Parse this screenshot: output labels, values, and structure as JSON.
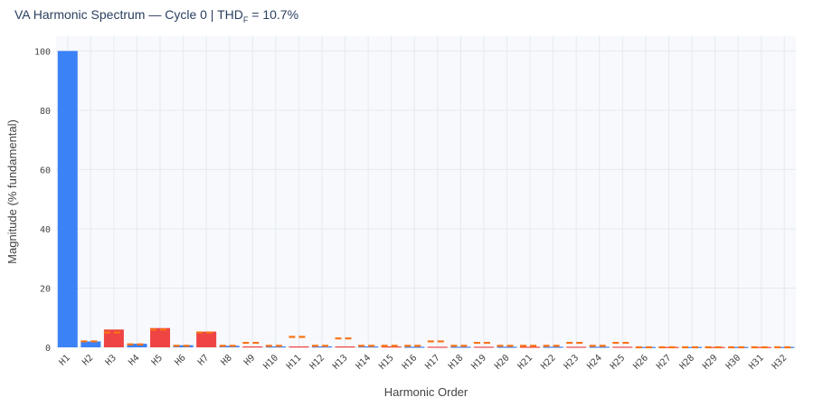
{
  "title": {
    "main": "VA Harmonic Spectrum — Cycle 0  |  THD",
    "sub": "F",
    "suffix": " = 10.7%"
  },
  "colors": {
    "even": "#3b82f6",
    "odd": "#ef4444",
    "limit": "#f97316",
    "plot_bg": "#f7f9fc",
    "grid": "#e5eaf1"
  },
  "chart_data": {
    "type": "bar",
    "title": "VA Harmonic Spectrum — Cycle 0  |  THDF = 10.7%",
    "xlabel": "Harmonic Order",
    "ylabel": "Magnitude (% fundamental)",
    "ylim": [
      0,
      105
    ],
    "yticks": [
      0,
      20,
      40,
      60,
      80,
      100
    ],
    "grid": true,
    "categories": [
      "H1",
      "H2",
      "H3",
      "H4",
      "H5",
      "H6",
      "H7",
      "H8",
      "H9",
      "H10",
      "H11",
      "H12",
      "H13",
      "H14",
      "H15",
      "H16",
      "H17",
      "H18",
      "H19",
      "H20",
      "H21",
      "H22",
      "H23",
      "H24",
      "H25",
      "H26",
      "H27",
      "H28",
      "H29",
      "H30",
      "H31",
      "H32"
    ],
    "series": [
      {
        "values": [
          100,
          2.0,
          6.0,
          1.2,
          6.5,
          0.7,
          5.3,
          0.5,
          0.3,
          0.3,
          0.3,
          0.3,
          0.3,
          0.3,
          0.3,
          0.2,
          0.2,
          0.2,
          0.2,
          0.2,
          0.2,
          0.2,
          0.2,
          0.2,
          0.2,
          0.1,
          0.1,
          0.1,
          0.1,
          0.1,
          0.1,
          0.1
        ]
      },
      {
        "values": [
          null,
          2.0,
          5.0,
          1.0,
          6.0,
          0.5,
          5.0,
          0.5,
          1.5,
          0.5,
          3.5,
          0.5,
          3.0,
          0.5,
          0.5,
          0.5,
          2.0,
          0.5,
          1.5,
          0.5,
          0.5,
          0.5,
          1.5,
          0.5,
          1.5,
          0.0,
          0.0,
          0.0,
          0.0,
          0.0,
          0.0,
          0.0
        ]
      }
    ]
  }
}
